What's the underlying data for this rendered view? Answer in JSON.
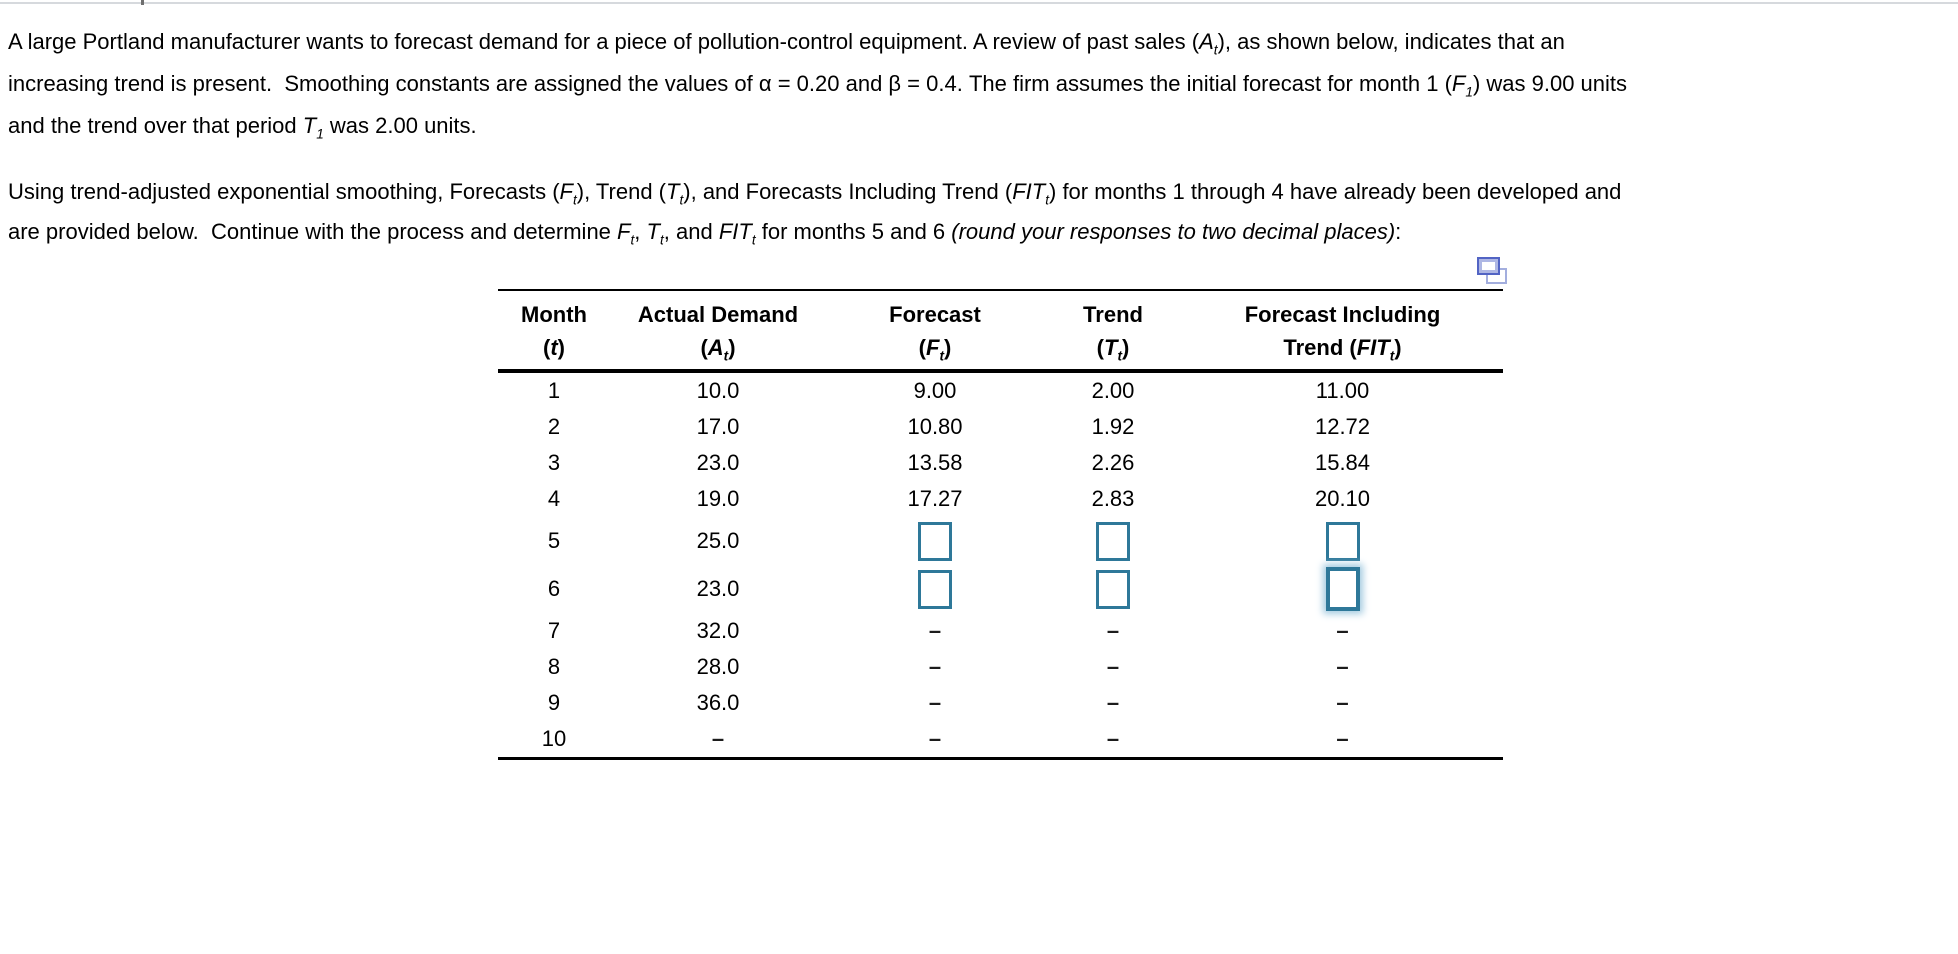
{
  "colors": {
    "input_border_teal": "#2e7899",
    "focus_glow_blue": "#a4cbe0",
    "icon_blue": "#5264c4",
    "icon_light_blue": "#a3aede",
    "top_divider_gray": "#d6d9dd",
    "rule_black": "#000000"
  },
  "intro": {
    "p1": [
      [
        {
          "t": "A large Portland manufacturer wants to forecast demand for a piece of pollution-control equipment. A review of past sales ("
        },
        {
          "t": "A",
          "i": true
        },
        {
          "t": "t",
          "i": true,
          "sub": true
        },
        {
          "t": "), as shown below, indicates that an"
        }
      ],
      [
        {
          "t": "increasing trend is present.  Smoothing constants are assigned the values of α = 0.20 and β = 0.4. The firm assumes the initial forecast for month 1 ("
        },
        {
          "t": "F",
          "i": true
        },
        {
          "t": "1",
          "i": true,
          "sub": true
        },
        {
          "t": ") was 9.00 units"
        }
      ],
      [
        {
          "t": "and the trend over that period "
        },
        {
          "t": "T",
          "i": true
        },
        {
          "t": "1",
          "i": true,
          "sub": true
        },
        {
          "t": " was 2.00 units."
        }
      ]
    ],
    "p2": [
      [
        {
          "t": "Using trend-adjusted exponential smoothing, Forecasts ("
        },
        {
          "t": "F",
          "i": true
        },
        {
          "t": "t",
          "i": true,
          "sub": true
        },
        {
          "t": "), Trend ("
        },
        {
          "t": "T",
          "i": true
        },
        {
          "t": "t",
          "i": true,
          "sub": true
        },
        {
          "t": "), and Forecasts Including Trend ("
        },
        {
          "t": "FIT",
          "i": true
        },
        {
          "t": "t",
          "i": true,
          "sub": true
        },
        {
          "t": ") for months 1 through 4 have already been developed and"
        }
      ],
      [
        {
          "t": "are provided below.  Continue with the process and determine "
        },
        {
          "t": "F",
          "i": true
        },
        {
          "t": "t",
          "i": true,
          "sub": true
        },
        {
          "t": ", "
        },
        {
          "t": "T",
          "i": true
        },
        {
          "t": "t",
          "i": true,
          "sub": true
        },
        {
          "t": ", and "
        },
        {
          "t": "FIT",
          "i": true
        },
        {
          "t": "t",
          "i": true,
          "sub": true
        },
        {
          "t": " for months 5 and 6 "
        },
        {
          "t": "(round your responses to two decimal places)",
          "i": true
        },
        {
          "t": ":"
        }
      ]
    ]
  },
  "table": {
    "corner_icon": "copy-window-icon",
    "headers": [
      {
        "line1": [
          {
            "t": "Month"
          }
        ],
        "line2": [
          {
            "t": "("
          },
          {
            "t": "t",
            "i": true
          },
          {
            "t": ")"
          }
        ]
      },
      {
        "line1": [
          {
            "t": "Actual Demand"
          }
        ],
        "line2": [
          {
            "t": "("
          },
          {
            "t": "A",
            "i": true
          },
          {
            "t": "t",
            "i": true,
            "sub": true
          },
          {
            "t": ")"
          }
        ]
      },
      {
        "line1": [
          {
            "t": "Forecast"
          }
        ],
        "line2": [
          {
            "t": "("
          },
          {
            "t": "F",
            "i": true
          },
          {
            "t": "t",
            "i": true,
            "sub": true
          },
          {
            "t": ")"
          }
        ]
      },
      {
        "line1": [
          {
            "t": "Trend"
          }
        ],
        "line2": [
          {
            "t": "("
          },
          {
            "t": "T",
            "i": true
          },
          {
            "t": "t",
            "i": true,
            "sub": true
          },
          {
            "t": ")"
          }
        ]
      },
      {
        "line1": [
          {
            "t": "Forecast Including"
          }
        ],
        "line2": [
          {
            "t": "Trend ("
          },
          {
            "t": "FIT",
            "i": true
          },
          {
            "t": "t",
            "i": true,
            "sub": true
          },
          {
            "t": ")"
          }
        ]
      }
    ],
    "rows": [
      {
        "month": "1",
        "cells": [
          "10.0",
          "9.00",
          "2.00",
          "11.00"
        ]
      },
      {
        "month": "2",
        "cells": [
          "17.0",
          "10.80",
          "1.92",
          "12.72"
        ]
      },
      {
        "month": "3",
        "cells": [
          "23.0",
          "13.58",
          "2.26",
          "15.84"
        ]
      },
      {
        "month": "4",
        "cells": [
          "19.0",
          "17.27",
          "2.83",
          "20.10"
        ]
      },
      {
        "month": "5",
        "cells": [
          "25.0",
          "@input",
          "@input",
          "@input"
        ]
      },
      {
        "month": "6",
        "cells": [
          "23.0",
          "@input",
          "@input",
          "@input-focus"
        ]
      },
      {
        "month": "7",
        "cells": [
          "32.0",
          "–",
          "–",
          "–"
        ]
      },
      {
        "month": "8",
        "cells": [
          "28.0",
          "–",
          "–",
          "–"
        ]
      },
      {
        "month": "9",
        "cells": [
          "36.0",
          "–",
          "–",
          "–"
        ]
      },
      {
        "month": "10",
        "cells": [
          "–",
          "–",
          "–",
          "–"
        ]
      }
    ]
  }
}
